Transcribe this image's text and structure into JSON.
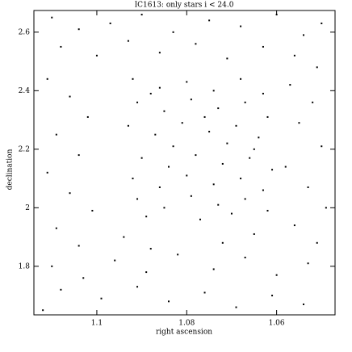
{
  "chart_data": {
    "type": "scatter",
    "title": "IC1613: only stars i < 24.0",
    "x_label": "right ascension",
    "y_label": "declination",
    "color": "#000000",
    "xlim": [
      1.114,
      1.047
    ],
    "ylim": [
      1.634,
      2.674
    ],
    "xticks": [
      1.1,
      1.08,
      1.06
    ],
    "yticks": [
      2.6,
      2.4,
      2.2,
      2,
      1.8
    ],
    "x": [
      1.11,
      1.104,
      1.097,
      1.09,
      1.083,
      1.075,
      1.068,
      1.06,
      1.054,
      1.05,
      1.108,
      1.1,
      1.093,
      1.086,
      1.078,
      1.071,
      1.063,
      1.056,
      1.051,
      1.111,
      1.106,
      1.102,
      1.109,
      1.104,
      1.111,
      1.106,
      1.101,
      1.109,
      1.104,
      1.057,
      1.052,
      1.055,
      1.05,
      1.058,
      1.053,
      1.049,
      1.056,
      1.051,
      1.11,
      1.103,
      1.096,
      1.089,
      1.082,
      1.074,
      1.067,
      1.06,
      1.053,
      1.108,
      1.099,
      1.091,
      1.084,
      1.076,
      1.069,
      1.061,
      1.054,
      1.112,
      1.094,
      1.072,
      1.065,
      1.088,
      1.092,
      1.086,
      1.08,
      1.074,
      1.068,
      1.063,
      1.091,
      1.085,
      1.079,
      1.073,
      1.067,
      1.062,
      1.093,
      1.087,
      1.081,
      1.075,
      1.069,
      1.064,
      1.09,
      1.084,
      1.078,
      1.072,
      1.066,
      1.061,
      1.092,
      1.086,
      1.08,
      1.074,
      1.068,
      1.063,
      1.091,
      1.085,
      1.079,
      1.073,
      1.067,
      1.062,
      1.089,
      1.077,
      1.07,
      1.083,
      1.071,
      1.088,
      1.076,
      1.065
    ],
    "values": [
      2.65,
      2.61,
      2.63,
      2.66,
      2.6,
      2.64,
      2.62,
      2.66,
      2.59,
      2.63,
      2.55,
      2.52,
      2.57,
      2.53,
      2.56,
      2.51,
      2.55,
      2.52,
      2.48,
      2.44,
      2.38,
      2.31,
      2.25,
      2.18,
      2.12,
      2.05,
      1.99,
      1.93,
      1.87,
      2.42,
      2.36,
      2.29,
      2.21,
      2.14,
      2.07,
      2.0,
      1.94,
      1.88,
      1.8,
      1.76,
      1.82,
      1.78,
      1.84,
      1.79,
      1.83,
      1.77,
      1.81,
      1.72,
      1.69,
      1.73,
      1.68,
      1.71,
      1.66,
      1.7,
      1.67,
      1.65,
      1.9,
      1.88,
      1.91,
      1.86,
      2.44,
      2.41,
      2.43,
      2.4,
      2.44,
      2.39,
      2.36,
      2.33,
      2.37,
      2.34,
      2.36,
      2.31,
      2.28,
      2.25,
      2.29,
      2.26,
      2.28,
      2.24,
      2.17,
      2.14,
      2.18,
      2.15,
      2.17,
      2.13,
      2.1,
      2.07,
      2.11,
      2.08,
      2.1,
      2.06,
      2.03,
      2.0,
      2.04,
      2.01,
      2.03,
      1.99,
      1.97,
      1.96,
      1.98,
      2.21,
      2.22,
      2.39,
      2.31,
      2.2
    ]
  }
}
